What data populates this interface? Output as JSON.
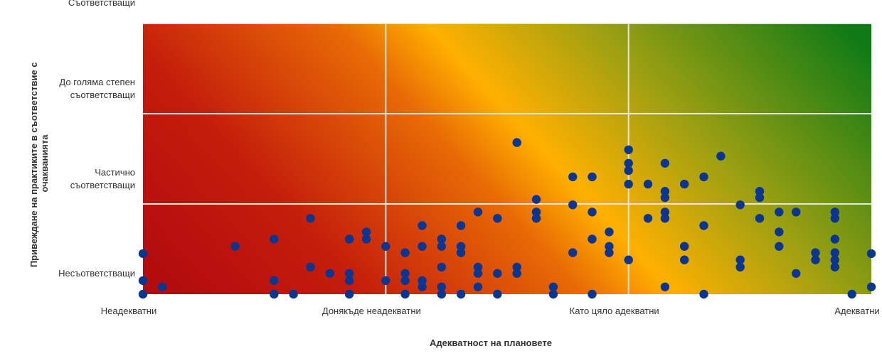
{
  "chart_data": {
    "type": "scatter",
    "title": "",
    "xlabel": "Адекватност на плановете",
    "ylabel": "Привеждане на практиките в съответствие с очакванията",
    "x_tick_labels": [
      "Неадекватни",
      "Донякъде неадекватни",
      "Като цяло адекватни",
      "Адекватни"
    ],
    "y_tick_labels": [
      "Несъответстващи",
      "Частично съответстващи",
      "До голяма степен съответстващи",
      "Съответстващи"
    ],
    "xlim": [
      0,
      3
    ],
    "ylim": [
      0,
      3
    ],
    "grid": true,
    "background_gradient": [
      "#b30c0f",
      "#ffb000",
      "#0e7a16"
    ],
    "marker_color": "#0a3591",
    "points": [
      [
        0.0,
        0.45
      ],
      [
        0.0,
        0.15
      ],
      [
        0.0,
        0.0
      ],
      [
        0.08,
        0.08
      ],
      [
        0.38,
        0.53
      ],
      [
        0.54,
        0.61
      ],
      [
        0.54,
        0.15
      ],
      [
        0.54,
        0.0
      ],
      [
        0.62,
        0.0
      ],
      [
        0.69,
        0.84
      ],
      [
        0.69,
        0.3
      ],
      [
        0.77,
        0.23
      ],
      [
        0.85,
        0.61
      ],
      [
        0.85,
        0.23
      ],
      [
        0.85,
        0.15
      ],
      [
        0.85,
        0.0
      ],
      [
        0.92,
        0.69
      ],
      [
        0.92,
        0.61
      ],
      [
        1.0,
        0.53
      ],
      [
        1.0,
        0.15
      ],
      [
        1.08,
        0.46
      ],
      [
        1.08,
        0.23
      ],
      [
        1.08,
        0.15
      ],
      [
        1.08,
        0.0
      ],
      [
        1.15,
        0.76
      ],
      [
        1.15,
        0.53
      ],
      [
        1.15,
        0.15
      ],
      [
        1.15,
        0.08
      ],
      [
        1.23,
        0.61
      ],
      [
        1.23,
        0.53
      ],
      [
        1.23,
        0.3
      ],
      [
        1.23,
        0.08
      ],
      [
        1.23,
        0.0
      ],
      [
        1.31,
        0.76
      ],
      [
        1.31,
        0.53
      ],
      [
        1.31,
        0.46
      ],
      [
        1.31,
        0.0
      ],
      [
        1.38,
        0.91
      ],
      [
        1.38,
        0.3
      ],
      [
        1.38,
        0.23
      ],
      [
        1.38,
        0.08
      ],
      [
        1.46,
        0.84
      ],
      [
        1.46,
        0.23
      ],
      [
        1.46,
        0.0
      ],
      [
        1.54,
        1.68
      ],
      [
        1.54,
        0.3
      ],
      [
        1.54,
        0.23
      ],
      [
        1.62,
        1.05
      ],
      [
        1.62,
        0.91
      ],
      [
        1.62,
        0.84
      ],
      [
        1.69,
        0.08
      ],
      [
        1.69,
        0.0
      ],
      [
        1.77,
        1.3
      ],
      [
        1.77,
        0.99
      ],
      [
        1.77,
        0.46
      ],
      [
        1.85,
        1.3
      ],
      [
        1.85,
        0.91
      ],
      [
        1.85,
        0.61
      ],
      [
        1.85,
        0.0
      ],
      [
        1.92,
        0.69
      ],
      [
        1.92,
        0.53
      ],
      [
        1.92,
        0.46
      ],
      [
        2.0,
        1.6
      ],
      [
        2.0,
        1.37
      ],
      [
        2.0,
        1.45
      ],
      [
        2.0,
        1.22
      ],
      [
        2.0,
        0.38
      ],
      [
        2.08,
        1.22
      ],
      [
        2.08,
        0.84
      ],
      [
        2.15,
        1.45
      ],
      [
        2.15,
        1.14
      ],
      [
        2.15,
        1.07
      ],
      [
        2.15,
        0.91
      ],
      [
        2.15,
        0.84
      ],
      [
        2.15,
        0.08
      ],
      [
        2.23,
        1.22
      ],
      [
        2.23,
        0.53
      ],
      [
        2.23,
        0.38
      ],
      [
        2.31,
        1.3
      ],
      [
        2.31,
        0.76
      ],
      [
        2.31,
        0.0
      ],
      [
        2.38,
        1.53
      ],
      [
        2.46,
        0.99
      ],
      [
        2.46,
        0.38
      ],
      [
        2.46,
        0.3
      ],
      [
        2.54,
        1.14
      ],
      [
        2.54,
        1.07
      ],
      [
        2.54,
        0.84
      ],
      [
        2.62,
        0.91
      ],
      [
        2.62,
        0.69
      ],
      [
        2.62,
        0.53
      ],
      [
        2.69,
        0.91
      ],
      [
        2.69,
        0.23
      ],
      [
        2.77,
        0.46
      ],
      [
        2.77,
        0.38
      ],
      [
        2.85,
        0.91
      ],
      [
        2.85,
        0.84
      ],
      [
        2.85,
        0.61
      ],
      [
        2.85,
        0.46
      ],
      [
        2.85,
        0.38
      ],
      [
        2.85,
        0.3
      ],
      [
        2.92,
        0.0
      ],
      [
        3.0,
        0.45
      ],
      [
        3.0,
        0.08
      ]
    ]
  }
}
